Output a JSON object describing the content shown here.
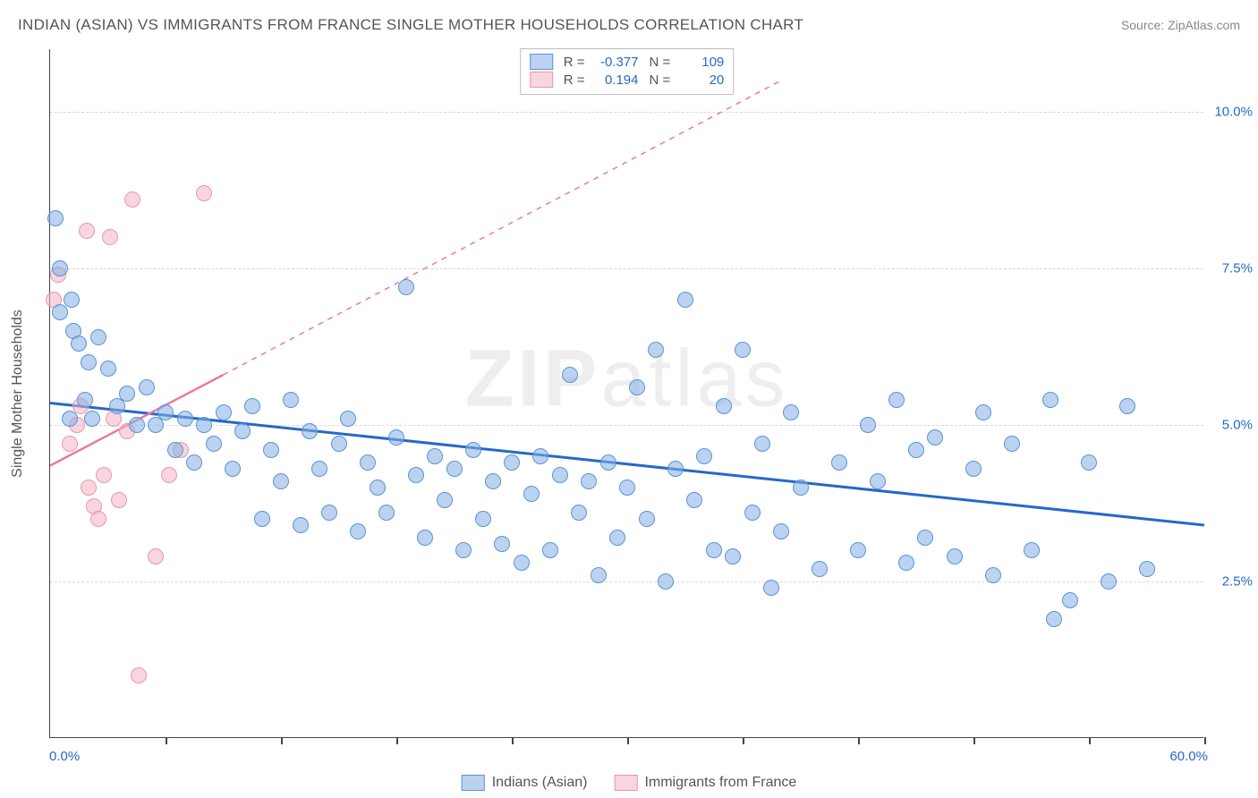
{
  "title": "INDIAN (ASIAN) VS IMMIGRANTS FROM FRANCE SINGLE MOTHER HOUSEHOLDS CORRELATION CHART",
  "source": "Source: ZipAtlas.com",
  "watermark_bold": "ZIP",
  "watermark_light": "atlas",
  "y_axis_title": "Single Mother Households",
  "chart": {
    "type": "scatter",
    "xlim": [
      0,
      60
    ],
    "ylim": [
      0,
      11
    ],
    "x_ticks": [
      0,
      6,
      12,
      18,
      24,
      30,
      36,
      42,
      48,
      54,
      60
    ],
    "y_gridlines": [
      2.5,
      5.0,
      7.5,
      10.0
    ],
    "y_tick_labels": [
      "2.5%",
      "5.0%",
      "7.5%",
      "10.0%"
    ],
    "x_min_label": "0.0%",
    "x_max_label": "60.0%",
    "background_color": "#ffffff",
    "grid_color": "#d8d8d8",
    "axis_color": "#444444",
    "label_color": "#2668c9"
  },
  "series": {
    "blue": {
      "name": "Indians (Asian)",
      "fill": "rgba(131,175,229,0.55)",
      "stroke": "#5b93d6",
      "line_color": "#2668c9",
      "line_width": 3,
      "R": "-0.377",
      "N": "109",
      "marker_radius": 9,
      "trend": {
        "x1": 0,
        "y1": 5.35,
        "x2": 60,
        "y2": 3.4
      },
      "points": [
        [
          0.3,
          8.3
        ],
        [
          0.5,
          7.5
        ],
        [
          0.5,
          6.8
        ],
        [
          1.1,
          7.0
        ],
        [
          1.2,
          6.5
        ],
        [
          1.5,
          6.3
        ],
        [
          2.0,
          6.0
        ],
        [
          2.5,
          6.4
        ],
        [
          1.0,
          5.1
        ],
        [
          1.8,
          5.4
        ],
        [
          2.2,
          5.1
        ],
        [
          3.0,
          5.9
        ],
        [
          3.5,
          5.3
        ],
        [
          4.0,
          5.5
        ],
        [
          4.5,
          5.0
        ],
        [
          5.0,
          5.6
        ],
        [
          5.5,
          5.0
        ],
        [
          6.0,
          5.2
        ],
        [
          6.5,
          4.6
        ],
        [
          7.0,
          5.1
        ],
        [
          7.5,
          4.4
        ],
        [
          8.0,
          5.0
        ],
        [
          8.5,
          4.7
        ],
        [
          9.0,
          5.2
        ],
        [
          9.5,
          4.3
        ],
        [
          10.0,
          4.9
        ],
        [
          10.5,
          5.3
        ],
        [
          11.0,
          3.5
        ],
        [
          11.5,
          4.6
        ],
        [
          12.0,
          4.1
        ],
        [
          12.5,
          5.4
        ],
        [
          13.0,
          3.4
        ],
        [
          13.5,
          4.9
        ],
        [
          14.0,
          4.3
        ],
        [
          14.5,
          3.6
        ],
        [
          15.0,
          4.7
        ],
        [
          15.5,
          5.1
        ],
        [
          16.0,
          3.3
        ],
        [
          16.5,
          4.4
        ],
        [
          17.0,
          4.0
        ],
        [
          17.5,
          3.6
        ],
        [
          18.0,
          4.8
        ],
        [
          18.5,
          7.2
        ],
        [
          19.0,
          4.2
        ],
        [
          19.5,
          3.2
        ],
        [
          20.0,
          4.5
        ],
        [
          20.5,
          3.8
        ],
        [
          21.0,
          4.3
        ],
        [
          21.5,
          3.0
        ],
        [
          22.0,
          4.6
        ],
        [
          22.5,
          3.5
        ],
        [
          23.0,
          4.1
        ],
        [
          23.5,
          3.1
        ],
        [
          24.0,
          4.4
        ],
        [
          24.5,
          2.8
        ],
        [
          25.0,
          3.9
        ],
        [
          25.5,
          4.5
        ],
        [
          26.0,
          3.0
        ],
        [
          26.5,
          4.2
        ],
        [
          27.0,
          5.8
        ],
        [
          27.5,
          3.6
        ],
        [
          28.0,
          4.1
        ],
        [
          28.5,
          2.6
        ],
        [
          29.0,
          4.4
        ],
        [
          29.5,
          3.2
        ],
        [
          30.0,
          4.0
        ],
        [
          30.5,
          5.6
        ],
        [
          31.0,
          3.5
        ],
        [
          31.5,
          6.2
        ],
        [
          32.0,
          2.5
        ],
        [
          32.5,
          4.3
        ],
        [
          33.0,
          7.0
        ],
        [
          33.5,
          3.8
        ],
        [
          34.0,
          4.5
        ],
        [
          34.5,
          3.0
        ],
        [
          35.0,
          5.3
        ],
        [
          35.5,
          2.9
        ],
        [
          36.0,
          6.2
        ],
        [
          36.5,
          3.6
        ],
        [
          37.0,
          4.7
        ],
        [
          37.5,
          2.4
        ],
        [
          38.0,
          3.3
        ],
        [
          38.5,
          5.2
        ],
        [
          39.0,
          4.0
        ],
        [
          40.0,
          2.7
        ],
        [
          41.0,
          4.4
        ],
        [
          42.0,
          3.0
        ],
        [
          42.5,
          5.0
        ],
        [
          43.0,
          4.1
        ],
        [
          44.0,
          5.4
        ],
        [
          44.5,
          2.8
        ],
        [
          45.0,
          4.6
        ],
        [
          45.5,
          3.2
        ],
        [
          46.0,
          4.8
        ],
        [
          47.0,
          2.9
        ],
        [
          48.0,
          4.3
        ],
        [
          48.5,
          5.2
        ],
        [
          49.0,
          2.6
        ],
        [
          50.0,
          4.7
        ],
        [
          51.0,
          3.0
        ],
        [
          52.0,
          5.4
        ],
        [
          52.2,
          1.9
        ],
        [
          53.0,
          2.2
        ],
        [
          54.0,
          4.4
        ],
        [
          55.0,
          2.5
        ],
        [
          56.0,
          5.3
        ],
        [
          57.0,
          2.7
        ]
      ]
    },
    "pink": {
      "name": "Immigrants from France",
      "fill": "rgba(244,178,195,0.55)",
      "stroke": "#e997ad",
      "line_color": "#ea7aa0",
      "line_width": 2.5,
      "R": "0.194",
      "N": "20",
      "marker_radius": 9,
      "trend_solid": {
        "x1": 0,
        "y1": 4.35,
        "x2": 9,
        "y2": 5.8
      },
      "trend_dashed": {
        "x1": 9,
        "y1": 5.8,
        "x2": 38,
        "y2": 10.5
      },
      "points": [
        [
          0.2,
          7.0
        ],
        [
          0.4,
          7.4
        ],
        [
          1.0,
          4.7
        ],
        [
          1.4,
          5.0
        ],
        [
          1.6,
          5.3
        ],
        [
          1.9,
          8.1
        ],
        [
          2.0,
          4.0
        ],
        [
          2.3,
          3.7
        ],
        [
          2.5,
          3.5
        ],
        [
          2.8,
          4.2
        ],
        [
          3.1,
          8.0
        ],
        [
          3.3,
          5.1
        ],
        [
          3.6,
          3.8
        ],
        [
          4.0,
          4.9
        ],
        [
          4.3,
          8.6
        ],
        [
          5.5,
          2.9
        ],
        [
          6.2,
          4.2
        ],
        [
          6.8,
          4.6
        ],
        [
          8.0,
          8.7
        ],
        [
          4.6,
          1.0
        ]
      ]
    }
  },
  "stats_labels": {
    "R": "R =",
    "N": "N ="
  }
}
